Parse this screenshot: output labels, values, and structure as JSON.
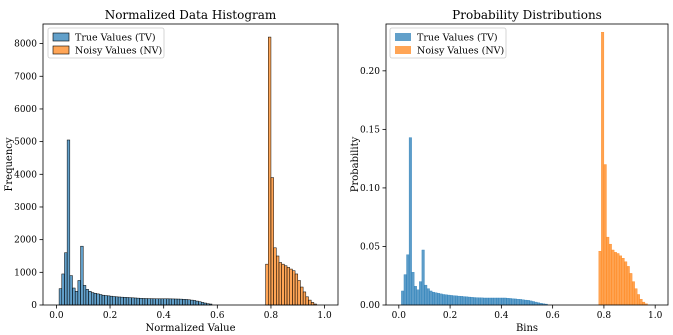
{
  "chart_data": [
    {
      "type": "histogram",
      "title": "Normalized Data Histogram",
      "xlabel": "Normalized Value",
      "ylabel": "Frequency",
      "xlim": [
        -0.05,
        1.05
      ],
      "ylim": [
        0,
        8600
      ],
      "xticks": [
        0.0,
        0.2,
        0.4,
        0.6,
        0.8,
        1.0
      ],
      "xtick_labels": [
        "0.0",
        "0.2",
        "0.4",
        "0.6",
        "0.8",
        "1.0"
      ],
      "yticks": [
        0,
        1000,
        2000,
        3000,
        4000,
        5000,
        6000,
        7000,
        8000
      ],
      "ytick_labels": [
        "0",
        "1000",
        "2000",
        "3000",
        "4000",
        "5000",
        "6000",
        "7000",
        "8000"
      ],
      "legend": "top-left",
      "bin_width": 0.01,
      "series": [
        {
          "name": "True Values (TV)",
          "color": "#1f77b4",
          "x_start": 0.01,
          "values": [
            500,
            950,
            1600,
            5050,
            900,
            520,
            420,
            750,
            1800,
            600,
            480,
            420,
            380,
            360,
            340,
            320,
            300,
            290,
            280,
            270,
            260,
            250,
            245,
            240,
            235,
            230,
            225,
            220,
            215,
            210,
            205,
            200,
            198,
            196,
            194,
            192,
            190,
            190,
            190,
            190,
            190,
            188,
            186,
            184,
            182,
            180,
            175,
            170,
            160,
            150,
            140,
            120,
            100,
            80,
            60,
            40,
            30
          ]
        },
        {
          "name": "Noisy Values (NV)",
          "color": "#ff7f0e",
          "x_start": 0.78,
          "values": [
            1250,
            8200,
            3900,
            1750,
            1500,
            1300,
            1250,
            1200,
            1150,
            1100,
            1050,
            950,
            750,
            550,
            400,
            250,
            150,
            80,
            30
          ]
        }
      ],
      "overlap_color": "#3b2617"
    },
    {
      "type": "histogram",
      "title": "Probability Distributions",
      "xlabel": "Bins",
      "ylabel": "Probability",
      "xlim": [
        -0.05,
        1.05
      ],
      "ylim": [
        0,
        0.24
      ],
      "xticks": [
        0.0,
        0.2,
        0.4,
        0.6,
        0.8,
        1.0
      ],
      "xtick_labels": [
        "0.0",
        "0.2",
        "0.4",
        "0.6",
        "0.8",
        "1.0"
      ],
      "yticks": [
        0.0,
        0.05,
        0.1,
        0.15,
        0.2
      ],
      "ytick_labels": [
        "0.00",
        "0.05",
        "0.10",
        "0.15",
        "0.20"
      ],
      "legend": "top-left",
      "bin_width": 0.01,
      "series": [
        {
          "name": "True Values (TV)",
          "color": "#1f77b4",
          "x_start": 0.01,
          "values": [
            0.012,
            0.026,
            0.043,
            0.143,
            0.028,
            0.016,
            0.013,
            0.02,
            0.047,
            0.017,
            0.014,
            0.012,
            0.011,
            0.0105,
            0.01,
            0.0095,
            0.009,
            0.0088,
            0.0085,
            0.0082,
            0.008,
            0.0078,
            0.0076,
            0.0074,
            0.0072,
            0.007,
            0.0068,
            0.0066,
            0.0064,
            0.0063,
            0.0062,
            0.0061,
            0.006,
            0.006,
            0.006,
            0.006,
            0.006,
            0.006,
            0.006,
            0.006,
            0.006,
            0.0058,
            0.0056,
            0.0054,
            0.0052,
            0.005,
            0.0048,
            0.0045,
            0.0042,
            0.004,
            0.0035,
            0.003,
            0.0025,
            0.002,
            0.0015,
            0.001,
            0.0008
          ]
        },
        {
          "name": "Noisy Values (NV)",
          "color": "#ff7f0e",
          "x_start": 0.78,
          "values": [
            0.046,
            0.233,
            0.12,
            0.058,
            0.052,
            0.047,
            0.045,
            0.044,
            0.042,
            0.04,
            0.037,
            0.033,
            0.027,
            0.02,
            0.014,
            0.009,
            0.005,
            0.0025,
            0.001
          ]
        }
      ]
    }
  ]
}
